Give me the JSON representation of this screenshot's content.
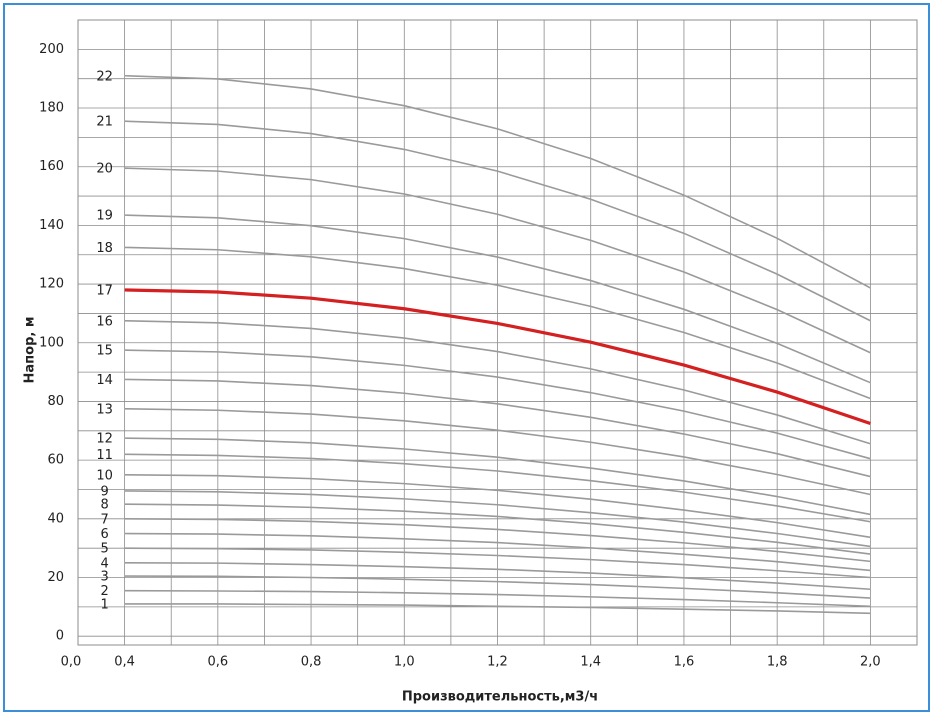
{
  "chart_data": {
    "type": "line",
    "ylabel": "Напор, м",
    "xlabel": "Производительность,м3/ч",
    "x_origin_label": "0,0",
    "x": [
      0.4,
      0.6,
      0.8,
      1.0,
      1.2,
      1.4,
      1.6,
      1.8,
      2.0
    ],
    "xlim": [
      0.3,
      2.1
    ],
    "ylim": [
      -3,
      210
    ],
    "xticks": [
      {
        "value": 0.4,
        "label": "0,4"
      },
      {
        "value": 0.6,
        "label": "0,6"
      },
      {
        "value": 0.8,
        "label": "0,8"
      },
      {
        "value": 1.0,
        "label": "1,0"
      },
      {
        "value": 1.2,
        "label": "1,2"
      },
      {
        "value": 1.4,
        "label": "1,4"
      },
      {
        "value": 1.6,
        "label": "1,6"
      },
      {
        "value": 1.8,
        "label": "1,8"
      },
      {
        "value": 2.0,
        "label": "2,0"
      }
    ],
    "yticks": [
      0,
      20,
      40,
      60,
      80,
      100,
      120,
      140,
      160,
      180,
      200
    ],
    "xgrid": [
      0.3,
      0.4,
      0.5,
      0.6,
      0.7,
      0.8,
      0.9,
      1.0,
      1.1,
      1.2,
      1.3,
      1.4,
      1.5,
      1.6,
      1.7,
      1.8,
      1.9,
      2.0,
      2.1
    ],
    "ygrid": [
      0,
      10,
      20,
      30,
      40,
      50,
      60,
      70,
      80,
      90,
      100,
      110,
      120,
      130,
      140,
      150,
      160,
      170,
      180,
      190,
      200
    ],
    "grid": true,
    "series": [
      {
        "name": "1",
        "color": "#9a9a9a",
        "values": [
          11,
          11,
          10.8,
          10.6,
          10.2,
          9.8,
          9.2,
          8.6,
          7.8
        ]
      },
      {
        "name": "2",
        "color": "#9a9a9a",
        "values": [
          15.5,
          15.4,
          15.2,
          14.8,
          14.2,
          13.4,
          12.5,
          11.4,
          10.2
        ]
      },
      {
        "name": "3",
        "color": "#9a9a9a",
        "values": [
          20.5,
          20.4,
          20,
          19.4,
          18.6,
          17.6,
          16.3,
          14.8,
          13
        ]
      },
      {
        "name": "4",
        "color": "#9a9a9a",
        "values": [
          25,
          24.9,
          24.4,
          23.7,
          22.8,
          21.5,
          19.9,
          18.1,
          16
        ]
      },
      {
        "name": "5",
        "color": "#9a9a9a",
        "values": [
          30,
          29.8,
          29.4,
          28.6,
          27.5,
          26.1,
          24.4,
          22.3,
          20
        ]
      },
      {
        "name": "6",
        "color": "#9a9a9a",
        "values": [
          35,
          34.8,
          34.2,
          33.2,
          31.9,
          30.1,
          27.9,
          25.4,
          22.4
        ]
      },
      {
        "name": "7",
        "color": "#9a9a9a",
        "values": [
          40,
          39.8,
          39.1,
          38,
          36.4,
          34.3,
          31.8,
          28.9,
          25.5
        ]
      },
      {
        "name": "8",
        "color": "#9a9a9a",
        "values": [
          45,
          44.7,
          43.9,
          42.6,
          40.8,
          38.4,
          35.4,
          32,
          28
        ]
      },
      {
        "name": "9",
        "color": "#9a9a9a",
        "values": [
          49.5,
          49.2,
          48.3,
          46.8,
          44.8,
          42.1,
          38.9,
          35,
          30.6
        ]
      },
      {
        "name": "10",
        "color": "#9a9a9a",
        "values": [
          55,
          54.7,
          53.7,
          52,
          49.7,
          46.7,
          43,
          38.7,
          33.7
        ]
      },
      {
        "name": "11",
        "color": "#9a9a9a",
        "values": [
          62,
          61.6,
          60.6,
          58.8,
          56.3,
          53,
          49.1,
          44.4,
          39
        ]
      },
      {
        "name": "12",
        "color": "#9a9a9a",
        "values": [
          67.5,
          67.1,
          65.9,
          63.8,
          61,
          57.3,
          52.9,
          47.6,
          41.5
        ]
      },
      {
        "name": "13",
        "color": "#9a9a9a",
        "values": [
          77.5,
          77,
          75.7,
          73.4,
          70.2,
          66.1,
          61.1,
          55.1,
          48.3
        ]
      },
      {
        "name": "14",
        "color": "#9a9a9a",
        "values": [
          87.5,
          87,
          85.4,
          82.8,
          79.2,
          74.6,
          68.9,
          62.2,
          54.4
        ]
      },
      {
        "name": "15",
        "color": "#9a9a9a",
        "values": [
          97.5,
          96.9,
          95.2,
          92.3,
          88.3,
          83,
          76.7,
          69.2,
          60.5
        ]
      },
      {
        "name": "16",
        "color": "#9a9a9a",
        "values": [
          107.5,
          106.8,
          104.9,
          101.6,
          97,
          91.1,
          83.9,
          75.4,
          65.6
        ]
      },
      {
        "name": "17",
        "color": "#d42020",
        "values": [
          118,
          117.3,
          115.2,
          111.6,
          106.6,
          100.2,
          92.4,
          83.2,
          72.5
        ]
      },
      {
        "name": "18",
        "color": "#9a9a9a",
        "values": [
          132.5,
          131.7,
          129.3,
          125.3,
          119.6,
          112.4,
          103.5,
          93.1,
          81
        ]
      },
      {
        "name": "19",
        "color": "#9a9a9a",
        "values": [
          143.5,
          142.6,
          139.9,
          135.5,
          129.2,
          121.2,
          111.4,
          99.8,
          86.4
        ]
      },
      {
        "name": "20",
        "color": "#9a9a9a",
        "values": [
          159.5,
          158.5,
          155.6,
          150.7,
          143.8,
          134.9,
          124.1,
          111.3,
          96.6
        ]
      },
      {
        "name": "21",
        "color": "#9a9a9a",
        "values": [
          175.5,
          174.4,
          171.3,
          165.9,
          158.5,
          148.9,
          137.3,
          123.4,
          107.5
        ]
      },
      {
        "name": "22",
        "color": "#9a9a9a",
        "values": [
          191,
          189.9,
          186.5,
          180.8,
          172.9,
          162.8,
          150.3,
          135.6,
          118.7
        ]
      }
    ]
  }
}
